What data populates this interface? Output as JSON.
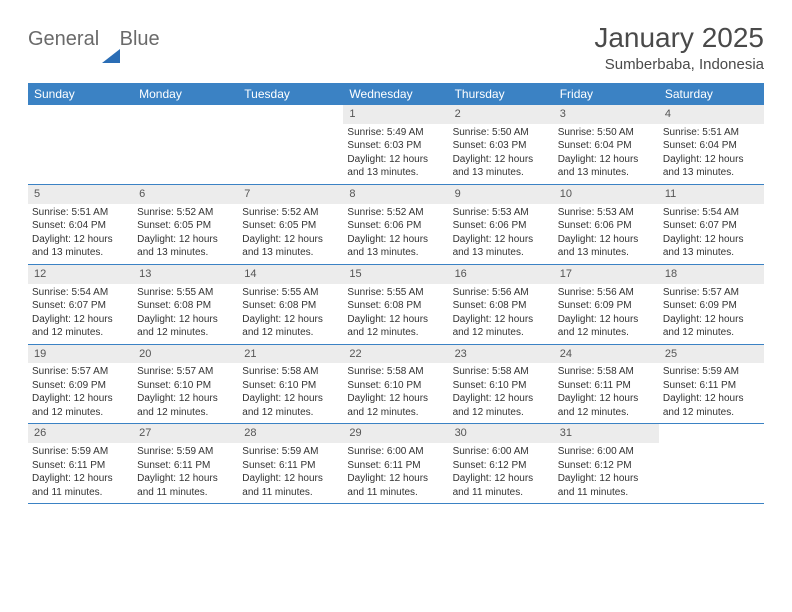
{
  "logo": {
    "text1": "General",
    "text2": "Blue"
  },
  "header": {
    "month_title": "January 2025",
    "location": "Sumberbaba, Indonesia"
  },
  "colors": {
    "header_bg": "#3b82c4",
    "header_text": "#ffffff",
    "daynum_bg": "#ececec",
    "daynum_text": "#555555",
    "body_text": "#333333",
    "border": "#3b82c4",
    "logo_gray": "#6a6a6a",
    "logo_blue": "#2a6db5"
  },
  "weekdays": [
    "Sunday",
    "Monday",
    "Tuesday",
    "Wednesday",
    "Thursday",
    "Friday",
    "Saturday"
  ],
  "weeks": [
    [
      {
        "n": "",
        "rise": "",
        "set": "",
        "day": ""
      },
      {
        "n": "",
        "rise": "",
        "set": "",
        "day": ""
      },
      {
        "n": "",
        "rise": "",
        "set": "",
        "day": ""
      },
      {
        "n": "1",
        "rise": "Sunrise: 5:49 AM",
        "set": "Sunset: 6:03 PM",
        "day": "Daylight: 12 hours and 13 minutes."
      },
      {
        "n": "2",
        "rise": "Sunrise: 5:50 AM",
        "set": "Sunset: 6:03 PM",
        "day": "Daylight: 12 hours and 13 minutes."
      },
      {
        "n": "3",
        "rise": "Sunrise: 5:50 AM",
        "set": "Sunset: 6:04 PM",
        "day": "Daylight: 12 hours and 13 minutes."
      },
      {
        "n": "4",
        "rise": "Sunrise: 5:51 AM",
        "set": "Sunset: 6:04 PM",
        "day": "Daylight: 12 hours and 13 minutes."
      }
    ],
    [
      {
        "n": "5",
        "rise": "Sunrise: 5:51 AM",
        "set": "Sunset: 6:04 PM",
        "day": "Daylight: 12 hours and 13 minutes."
      },
      {
        "n": "6",
        "rise": "Sunrise: 5:52 AM",
        "set": "Sunset: 6:05 PM",
        "day": "Daylight: 12 hours and 13 minutes."
      },
      {
        "n": "7",
        "rise": "Sunrise: 5:52 AM",
        "set": "Sunset: 6:05 PM",
        "day": "Daylight: 12 hours and 13 minutes."
      },
      {
        "n": "8",
        "rise": "Sunrise: 5:52 AM",
        "set": "Sunset: 6:06 PM",
        "day": "Daylight: 12 hours and 13 minutes."
      },
      {
        "n": "9",
        "rise": "Sunrise: 5:53 AM",
        "set": "Sunset: 6:06 PM",
        "day": "Daylight: 12 hours and 13 minutes."
      },
      {
        "n": "10",
        "rise": "Sunrise: 5:53 AM",
        "set": "Sunset: 6:06 PM",
        "day": "Daylight: 12 hours and 13 minutes."
      },
      {
        "n": "11",
        "rise": "Sunrise: 5:54 AM",
        "set": "Sunset: 6:07 PM",
        "day": "Daylight: 12 hours and 13 minutes."
      }
    ],
    [
      {
        "n": "12",
        "rise": "Sunrise: 5:54 AM",
        "set": "Sunset: 6:07 PM",
        "day": "Daylight: 12 hours and 12 minutes."
      },
      {
        "n": "13",
        "rise": "Sunrise: 5:55 AM",
        "set": "Sunset: 6:08 PM",
        "day": "Daylight: 12 hours and 12 minutes."
      },
      {
        "n": "14",
        "rise": "Sunrise: 5:55 AM",
        "set": "Sunset: 6:08 PM",
        "day": "Daylight: 12 hours and 12 minutes."
      },
      {
        "n": "15",
        "rise": "Sunrise: 5:55 AM",
        "set": "Sunset: 6:08 PM",
        "day": "Daylight: 12 hours and 12 minutes."
      },
      {
        "n": "16",
        "rise": "Sunrise: 5:56 AM",
        "set": "Sunset: 6:08 PM",
        "day": "Daylight: 12 hours and 12 minutes."
      },
      {
        "n": "17",
        "rise": "Sunrise: 5:56 AM",
        "set": "Sunset: 6:09 PM",
        "day": "Daylight: 12 hours and 12 minutes."
      },
      {
        "n": "18",
        "rise": "Sunrise: 5:57 AM",
        "set": "Sunset: 6:09 PM",
        "day": "Daylight: 12 hours and 12 minutes."
      }
    ],
    [
      {
        "n": "19",
        "rise": "Sunrise: 5:57 AM",
        "set": "Sunset: 6:09 PM",
        "day": "Daylight: 12 hours and 12 minutes."
      },
      {
        "n": "20",
        "rise": "Sunrise: 5:57 AM",
        "set": "Sunset: 6:10 PM",
        "day": "Daylight: 12 hours and 12 minutes."
      },
      {
        "n": "21",
        "rise": "Sunrise: 5:58 AM",
        "set": "Sunset: 6:10 PM",
        "day": "Daylight: 12 hours and 12 minutes."
      },
      {
        "n": "22",
        "rise": "Sunrise: 5:58 AM",
        "set": "Sunset: 6:10 PM",
        "day": "Daylight: 12 hours and 12 minutes."
      },
      {
        "n": "23",
        "rise": "Sunrise: 5:58 AM",
        "set": "Sunset: 6:10 PM",
        "day": "Daylight: 12 hours and 12 minutes."
      },
      {
        "n": "24",
        "rise": "Sunrise: 5:58 AM",
        "set": "Sunset: 6:11 PM",
        "day": "Daylight: 12 hours and 12 minutes."
      },
      {
        "n": "25",
        "rise": "Sunrise: 5:59 AM",
        "set": "Sunset: 6:11 PM",
        "day": "Daylight: 12 hours and 12 minutes."
      }
    ],
    [
      {
        "n": "26",
        "rise": "Sunrise: 5:59 AM",
        "set": "Sunset: 6:11 PM",
        "day": "Daylight: 12 hours and 11 minutes."
      },
      {
        "n": "27",
        "rise": "Sunrise: 5:59 AM",
        "set": "Sunset: 6:11 PM",
        "day": "Daylight: 12 hours and 11 minutes."
      },
      {
        "n": "28",
        "rise": "Sunrise: 5:59 AM",
        "set": "Sunset: 6:11 PM",
        "day": "Daylight: 12 hours and 11 minutes."
      },
      {
        "n": "29",
        "rise": "Sunrise: 6:00 AM",
        "set": "Sunset: 6:11 PM",
        "day": "Daylight: 12 hours and 11 minutes."
      },
      {
        "n": "30",
        "rise": "Sunrise: 6:00 AM",
        "set": "Sunset: 6:12 PM",
        "day": "Daylight: 12 hours and 11 minutes."
      },
      {
        "n": "31",
        "rise": "Sunrise: 6:00 AM",
        "set": "Sunset: 6:12 PM",
        "day": "Daylight: 12 hours and 11 minutes."
      },
      {
        "n": "",
        "rise": "",
        "set": "",
        "day": ""
      }
    ]
  ]
}
